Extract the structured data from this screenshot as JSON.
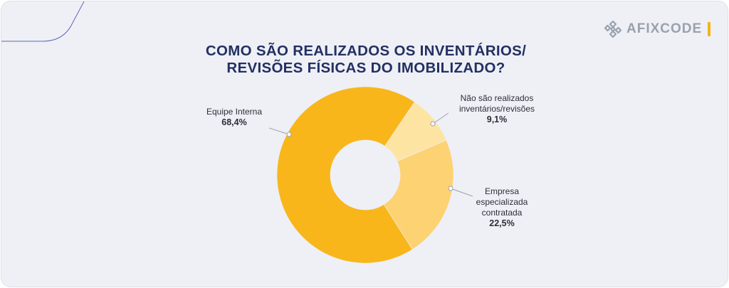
{
  "brand": {
    "name": "AFIXCODE",
    "icon": "afixcode-logo-icon",
    "accent_color": "#f4b416"
  },
  "chart_data": {
    "type": "pie",
    "donut": true,
    "title": "COMO SÃO REALIZADOS OS INVENTÁRIOS/ REVISÕES FÍSICAS DO IMOBILIZADO?",
    "title_lines": [
      "COMO SÃO REALIZADOS OS INVENTÁRIOS/",
      "REVISÕES FÍSICAS DO IMOBILIZADO?"
    ],
    "slices": [
      {
        "label_lines": [
          "Equipe Interna"
        ],
        "value": 68.4,
        "value_label": "68,4%",
        "color": "#f8b61a"
      },
      {
        "label_lines": [
          "Não são realizados",
          "inventários/revisões"
        ],
        "value": 9.1,
        "value_label": "9,1%",
        "color": "#fde4a3"
      },
      {
        "label_lines": [
          "Empresa",
          "especializada",
          "contratada"
        ],
        "value": 22.5,
        "value_label": "22,5%",
        "color": "#fdd273"
      }
    ],
    "legend": "none",
    "data_labels": "outside-with-leader-lines"
  }
}
